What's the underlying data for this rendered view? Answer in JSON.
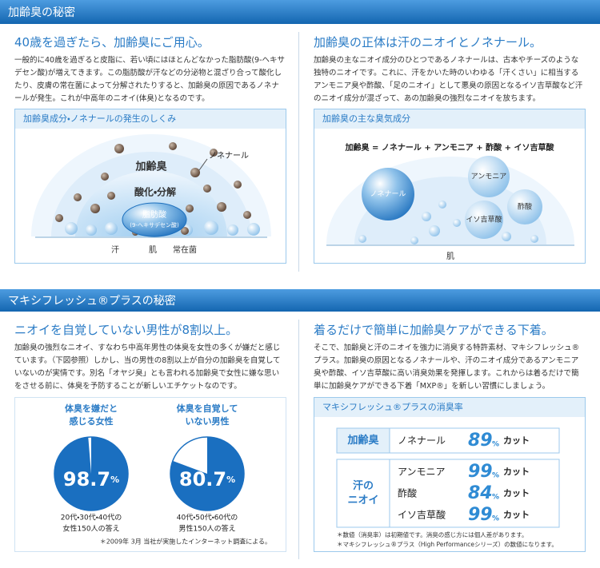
{
  "section1": {
    "title": "加齢臭の秘密",
    "left": {
      "heading": "40歳を過ぎたら、加齢臭にご用心。",
      "text": "一般的に40歳を過ぎると皮脂に、若い頃にはほとんどなかった脂肪酸(9-ヘキサデセン酸)が増えてきます。この脂肪酸が汗などの分泌物と混ざり合って酸化したり、皮膚の常在菌によって分解されたりすると、加齢臭の原因であるノネナールが発生。これが中高年のニオイ(体臭)となるのです。",
      "box_title": "加齢臭成分・ノネナールの発生のしくみ",
      "diagram": {
        "nonenal": "ノネナール",
        "odor": "加齢臭",
        "process": "酸化・分解",
        "fatty_acid": "脂肪酸",
        "fatty_acid_detail": "(9-ヘキサデセン酸)",
        "sweat": "汗",
        "skin": "肌",
        "bacteria": "常在菌"
      }
    },
    "right": {
      "heading": "加齢臭の正体は汗のニオイとノネナール。",
      "text": "加齢臭の主なニオイ成分のひとつであるノネナールは、古本やチーズのような独特のニオイです。これに、汗をかいた時のいわゆる「汗くさい」に相当するアンモニア臭や酢酸、「足のニオイ」として悪臭の原因となるイソ吉草酸など汗のニオイ成分が混ざって、あの加齢臭の強烈なニオイを放ちます。",
      "box_title": "加齢臭の主な臭気成分",
      "formula": "加齢臭 = ノネナール + アンモニア + 酢酸 + イソ吉草酸",
      "bubbles": [
        "ノネナール",
        "アンモニア",
        "イソ吉草酸",
        "酢酸"
      ],
      "skin": "肌"
    }
  },
  "section2": {
    "title": "マキシフレッシュ®プラスの秘密",
    "left": {
      "heading": "ニオイを自覚していない男性が8割以上。",
      "text": "加齢臭の強烈なニオイ、すなわち中高年男性の体臭を女性の多くが嫌だと感じています。（下図参照）しかし、当の男性の8割以上が自分の加齢臭を自覚していないのが実情です。別名「オヤジ臭」とも言われる加齢臭で女性に嫌な思いをさせる前に、体臭を予防することが新しいエチケットなのです。",
      "pies": [
        {
          "title": [
            "体臭を嫌だと",
            "感じる女性"
          ],
          "value": 98.7,
          "unit": "%",
          "caption": [
            "20代・30代・40代の",
            "女性150人の答え"
          ]
        },
        {
          "title": [
            "体臭を自覚して",
            "いない男性"
          ],
          "value": 80.7,
          "unit": "%",
          "caption": [
            "40代・50代・60代の",
            "男性150人の答え"
          ]
        }
      ],
      "note": "＊2009年 3月 当社が実施したインターネット調査による。"
    },
    "right": {
      "heading": "着るだけで簡単に加齢臭ケアができる下着。",
      "text": "そこで、加齢臭と汗のニオイを強力に消臭する特許素材、マキシフレッシュ®プラス。加齢臭の原因となるノネナールや、汗のニオイ成分であるアンモニア臭や酢酸、イソ吉草酸に高い消臭効果を発揮します。これからは着るだけで簡単に加齢臭ケアができる下着「MXP®」を新しい習慣にしましょう。",
      "box_title": "マキシフレッシュ®プラスの消臭率",
      "groups": [
        {
          "label": [
            "加齢臭"
          ],
          "rows": [
            {
              "name": "ノネナール",
              "value": 89,
              "unit": "%",
              "suffix": "カット"
            }
          ]
        },
        {
          "label": [
            "汗の",
            "ニオイ"
          ],
          "rows": [
            {
              "name": "アンモニア",
              "value": 99,
              "unit": "%",
              "suffix": "カット"
            },
            {
              "name": "酢酸",
              "value": 84,
              "unit": "%",
              "suffix": "カット"
            },
            {
              "name": "イソ吉草酸",
              "value": 99,
              "unit": "%",
              "suffix": "カット"
            }
          ]
        }
      ],
      "notes": [
        "＊数値（消臭率）は初期値です。消臭の感じ方には個人差があります。",
        "＊マキシフレッシュ®プラス（High Performanceシリーズ）の数値になります。"
      ]
    }
  }
}
